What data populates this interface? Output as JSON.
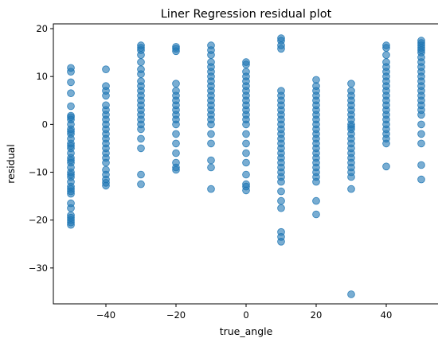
{
  "chart_data": {
    "type": "scatter",
    "title": "Liner Regression residual plot",
    "xlabel": "true_angle",
    "ylabel": "residual",
    "xlim": [
      -55,
      55
    ],
    "ylim": [
      -37.5,
      21
    ],
    "x_ticks": [
      -40,
      -20,
      0,
      20,
      40
    ],
    "x_tick_labels": [
      "−40",
      "−20",
      "0",
      "20",
      "40"
    ],
    "y_ticks": [
      -30,
      -20,
      -10,
      0,
      10,
      20
    ],
    "y_tick_labels": [
      "−30",
      "−20",
      "−10",
      "0",
      "10",
      "20"
    ],
    "grid": false,
    "legend": "none",
    "marker_color": "#1f77b4",
    "marker_opacity": 0.6,
    "series": [
      {
        "x": [
          -50,
          -50,
          -50,
          -50,
          -50,
          -50,
          -50,
          -50,
          -50,
          -50,
          -50,
          -50,
          -50,
          -50,
          -50,
          -50,
          -50,
          -50,
          -50,
          -50,
          -50,
          -50,
          -50,
          -50,
          -50,
          -50,
          -50,
          -50,
          -50,
          -50,
          -50,
          -50,
          -50,
          -50,
          -50,
          -50,
          -40,
          -40,
          -40,
          -40,
          -40,
          -40,
          -40,
          -40,
          -40,
          -40,
          -40,
          -40,
          -40,
          -40,
          -40,
          -40,
          -40,
          -40,
          -40,
          -40,
          -40,
          -40,
          -30,
          -30,
          -30,
          -30,
          -30,
          -30,
          -30,
          -30,
          -30,
          -30,
          -30,
          -30,
          -30,
          -30,
          -30,
          -30,
          -30,
          -30,
          -30,
          -30,
          -30,
          -30,
          -20,
          -20,
          -20,
          -20,
          -20,
          -20,
          -20,
          -20,
          -20,
          -20,
          -20,
          -20,
          -20,
          -20,
          -20,
          -20,
          -20,
          -20,
          -10,
          -10,
          -10,
          -10,
          -10,
          -10,
          -10,
          -10,
          -10,
          -10,
          -10,
          -10,
          -10,
          -10,
          -10,
          -10,
          -10,
          -10,
          -10,
          -10,
          -10,
          -10,
          0,
          0,
          0,
          0,
          0,
          0,
          0,
          0,
          0,
          0,
          0,
          0,
          0,
          0,
          0,
          0,
          0,
          0,
          0,
          0,
          0,
          0,
          10,
          10,
          10,
          10,
          10,
          10,
          10,
          10,
          10,
          10,
          10,
          10,
          10,
          10,
          10,
          10,
          10,
          10,
          10,
          10,
          10,
          10,
          10,
          10,
          10,
          10,
          10,
          10,
          10,
          10,
          20,
          20,
          20,
          20,
          20,
          20,
          20,
          20,
          20,
          20,
          20,
          20,
          20,
          20,
          20,
          20,
          20,
          20,
          20,
          20,
          20,
          20,
          20,
          20,
          30,
          30,
          30,
          30,
          30,
          30,
          30,
          30,
          30,
          30,
          30,
          30,
          30,
          30,
          30,
          30,
          30,
          30,
          30,
          30,
          30,
          30,
          30,
          40,
          40,
          40,
          40,
          40,
          40,
          40,
          40,
          40,
          40,
          40,
          40,
          40,
          40,
          40,
          40,
          40,
          40,
          40,
          40,
          40,
          40,
          50,
          50,
          50,
          50,
          50,
          50,
          50,
          50,
          50,
          50,
          50,
          50,
          50,
          50,
          50,
          50,
          50,
          50,
          50,
          50,
          50,
          50,
          50,
          50
        ],
        "y": [
          11.8,
          11,
          8.8,
          6.5,
          3.8,
          1.8,
          1,
          0,
          -1,
          -2,
          -3,
          -4,
          -5,
          -6,
          -7,
          -8,
          -9,
          -10,
          -11,
          -12,
          -13,
          -14,
          -14.5,
          -16.5,
          -17.5,
          -19,
          -19.5,
          -20,
          -20.5,
          -21,
          1.5,
          -1.5,
          -4.5,
          -7.5,
          -10.5,
          -13.5,
          11.5,
          8,
          7,
          6,
          4,
          3,
          2,
          1,
          0,
          -1,
          -2,
          -3,
          -4,
          -5,
          -6,
          -7,
          -8,
          -9.5,
          -10.5,
          -11.5,
          -12.2,
          -12.8,
          16.5,
          16,
          15.5,
          14.5,
          13,
          11.5,
          10.5,
          9,
          8,
          7,
          6,
          5,
          4,
          3,
          2,
          1,
          0,
          -1,
          -3,
          -5,
          -10.5,
          -12.5,
          16.2,
          15.8,
          15.3,
          8.5,
          7,
          6,
          5,
          4,
          3,
          2,
          1,
          0,
          -2,
          -4,
          -6,
          -8,
          -9,
          -9.5,
          16.5,
          15.5,
          14.5,
          13,
          12,
          11,
          10,
          9,
          8,
          7,
          6,
          5,
          4,
          3,
          2,
          1,
          0,
          -2,
          -4,
          -7.5,
          -9,
          -13.5,
          13,
          12.5,
          11,
          10,
          9,
          8,
          7,
          6,
          5,
          4,
          3,
          2,
          1,
          0,
          -2,
          -4,
          -6,
          -8,
          -10.5,
          -12.5,
          -13,
          -13.8,
          18,
          17.5,
          16.5,
          15.8,
          7,
          6,
          5,
          4,
          3,
          2,
          1,
          0,
          -1,
          -2,
          -3,
          -4,
          -5,
          -6,
          -7,
          -8,
          -9,
          -10,
          -11,
          -12,
          -14,
          -16,
          -17.5,
          -22.5,
          -23.5,
          -24.5,
          9.3,
          8,
          7,
          6,
          5,
          4,
          3,
          2,
          1,
          0,
          -1,
          -2,
          -3,
          -4,
          -5,
          -6,
          -7,
          -8,
          -9,
          -10,
          -11,
          -12,
          -16,
          -18.8,
          8.5,
          7,
          6,
          5,
          4,
          3,
          2,
          1,
          0,
          -1,
          -2,
          -3,
          -4,
          -5,
          -6,
          -7,
          -8,
          -9,
          -10,
          -11,
          -13.5,
          -35.5,
          -0.5,
          16.5,
          16,
          14.5,
          13,
          12,
          11,
          10,
          9,
          8,
          7,
          6,
          5,
          4,
          3,
          2,
          1,
          0,
          -1,
          -2,
          -3,
          -4,
          -8.8,
          17.5,
          17,
          16.5,
          16,
          15.5,
          15,
          14,
          13,
          12,
          11,
          10,
          9,
          8,
          7,
          6,
          5,
          4,
          3,
          2,
          0,
          -2,
          -4,
          -8.5,
          -11.5
        ]
      }
    ]
  }
}
